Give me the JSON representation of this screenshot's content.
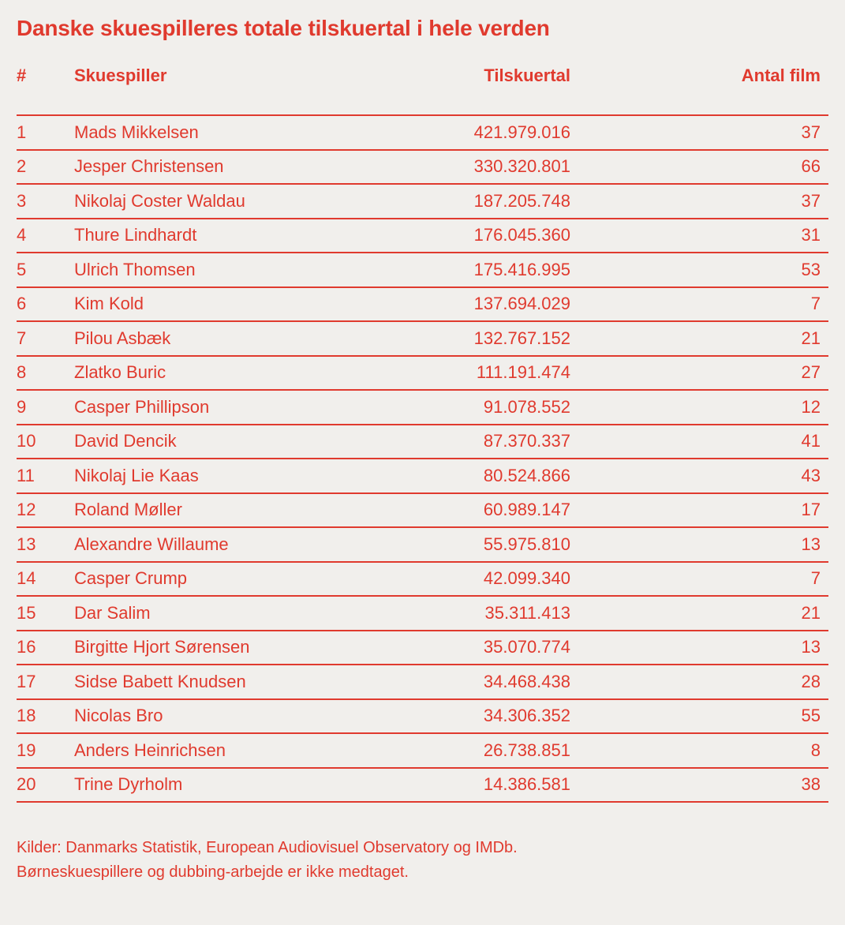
{
  "title": "Danske skuespilleres totale tilskuertal i hele verden",
  "colors": {
    "accent": "#e03a2e",
    "background": "#f1efec"
  },
  "table": {
    "columns": [
      "#",
      "Skuespiller",
      "Tilskuertal",
      "Antal film"
    ],
    "rows": [
      [
        "1",
        "Mads Mikkelsen",
        "421.979.016",
        "37"
      ],
      [
        "2",
        "Jesper Christensen",
        "330.320.801",
        "66"
      ],
      [
        "3",
        "Nikolaj Coster Waldau",
        "187.205.748",
        "37"
      ],
      [
        "4",
        "Thure Lindhardt",
        "176.045.360",
        "31"
      ],
      [
        "5",
        "Ulrich Thomsen",
        "175.416.995",
        "53"
      ],
      [
        "6",
        "Kim Kold",
        "137.694.029",
        "7"
      ],
      [
        "7",
        "Pilou Asbæk",
        "132.767.152",
        "21"
      ],
      [
        "8",
        "Zlatko Buric",
        "111.191.474",
        "27"
      ],
      [
        "9",
        "Casper Phillipson",
        "91.078.552",
        "12"
      ],
      [
        "10",
        "David Dencik",
        "87.370.337",
        "41"
      ],
      [
        "11",
        "Nikolaj Lie Kaas",
        "80.524.866",
        "43"
      ],
      [
        "12",
        "Roland Møller",
        "60.989.147",
        "17"
      ],
      [
        "13",
        "Alexandre Willaume",
        "55.975.810",
        "13"
      ],
      [
        "14",
        "Casper Crump",
        "42.099.340",
        "7"
      ],
      [
        "15",
        "Dar Salim",
        "35.311.413",
        "21"
      ],
      [
        "16",
        "Birgitte Hjort Sørensen",
        "35.070.774",
        "13"
      ],
      [
        "17",
        "Sidse Babett Knudsen",
        "34.468.438",
        "28"
      ],
      [
        "18",
        "Nicolas Bro",
        "34.306.352",
        "55"
      ],
      [
        "19",
        "Anders Heinrichsen",
        "26.738.851",
        "8"
      ],
      [
        "20",
        "Trine Dyrholm",
        "14.386.581",
        "38"
      ]
    ]
  },
  "footer": {
    "line1": "Kilder: Danmarks Statistik, European Audiovisuel Observatory og IMDb.",
    "line2": "Børneskuespillere og dubbing-arbejde er ikke medtaget."
  },
  "chart_data": {
    "type": "table",
    "title": "Danske skuespilleres totale tilskuertal i hele verden",
    "columns": [
      "#",
      "Skuespiller",
      "Tilskuertal",
      "Antal film"
    ],
    "rows": [
      [
        1,
        "Mads Mikkelsen",
        421979016,
        37
      ],
      [
        2,
        "Jesper Christensen",
        330320801,
        66
      ],
      [
        3,
        "Nikolaj Coster Waldau",
        187205748,
        37
      ],
      [
        4,
        "Thure Lindhardt",
        176045360,
        31
      ],
      [
        5,
        "Ulrich Thomsen",
        175416995,
        53
      ],
      [
        6,
        "Kim Kold",
        137694029,
        7
      ],
      [
        7,
        "Pilou Asbæk",
        132767152,
        21
      ],
      [
        8,
        "Zlatko Buric",
        111191474,
        27
      ],
      [
        9,
        "Casper Phillipson",
        91078552,
        12
      ],
      [
        10,
        "David Dencik",
        87370337,
        41
      ],
      [
        11,
        "Nikolaj Lie Kaas",
        80524866,
        43
      ],
      [
        12,
        "Roland Møller",
        60989147,
        17
      ],
      [
        13,
        "Alexandre Willaume",
        55975810,
        13
      ],
      [
        14,
        "Casper Crump",
        42099340,
        7
      ],
      [
        15,
        "Dar Salim",
        35311413,
        21
      ],
      [
        16,
        "Birgitte Hjort Sørensen",
        35070774,
        13
      ],
      [
        17,
        "Sidse Babett Knudsen",
        34468438,
        28
      ],
      [
        18,
        "Nicolas Bro",
        34306352,
        55
      ],
      [
        19,
        "Anders Heinrichsen",
        26738851,
        8
      ],
      [
        20,
        "Trine Dyrholm",
        14386581,
        38
      ]
    ],
    "number_format": "da-DK thousands separated by periods",
    "sources": "Kilder: Danmarks Statistik, European Audiovisuel Observatory og IMDb.",
    "note": "Børneskuespillere og dubbing-arbejde er ikke medtaget."
  }
}
